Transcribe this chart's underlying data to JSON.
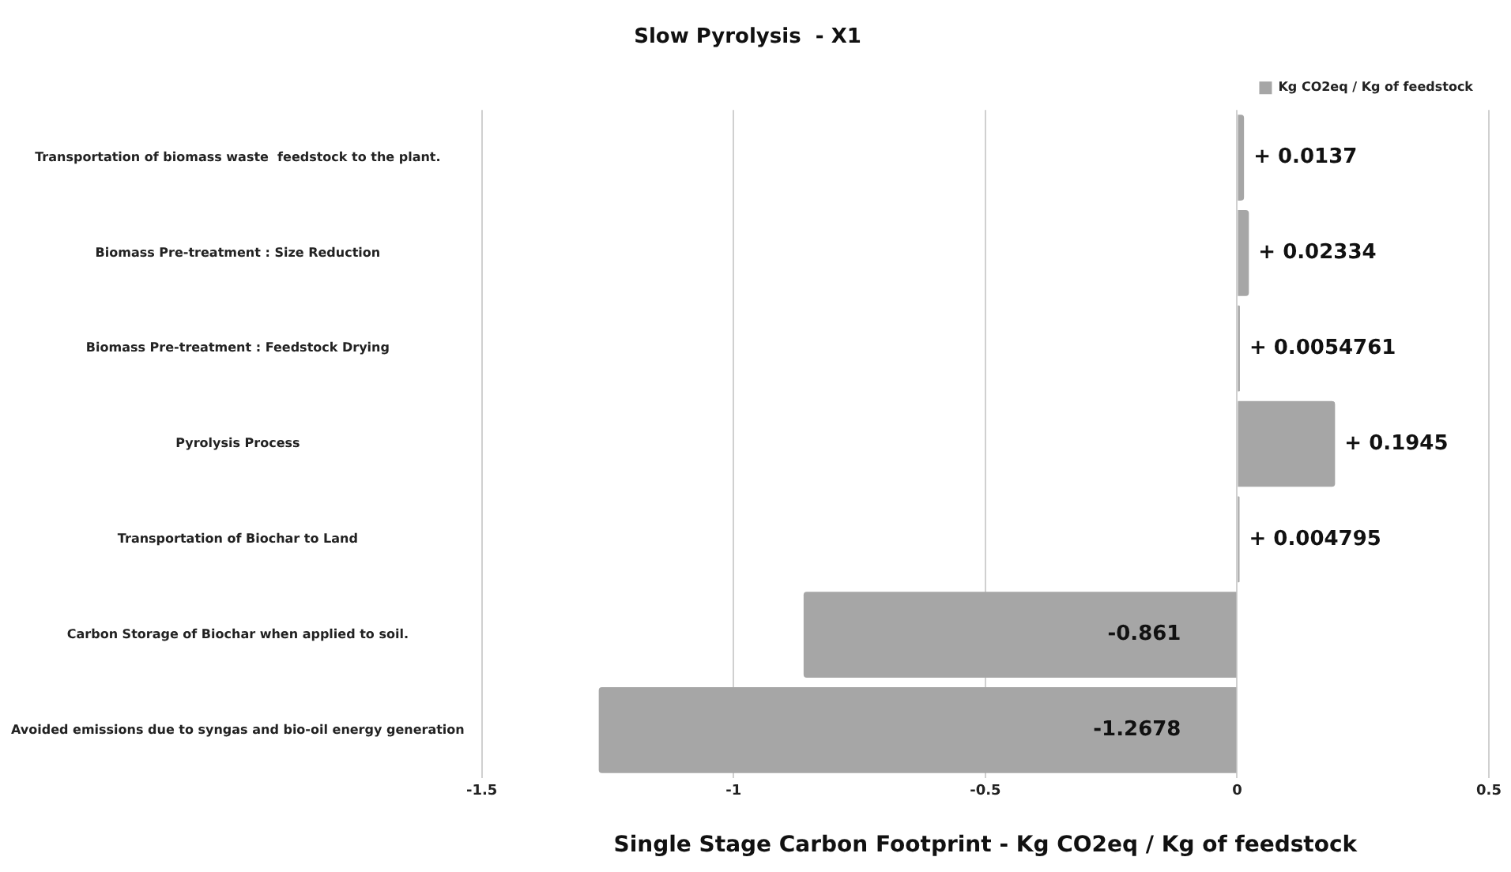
{
  "chart_data": {
    "type": "bar",
    "orientation": "horizontal",
    "title": "Slow Pyrolysis  - X1",
    "xlabel": "Single Stage Carbon Footprint - Kg CO2eq / Kg of feedstock",
    "categories": [
      "Transportation of biomass waste  feedstock to the plant.",
      "Biomass Pre-treatment : Size Reduction",
      "Biomass Pre-treatment : Feedstock Drying",
      "Pyrolysis Process",
      "Transportation of Biochar to Land",
      "Carbon Storage of Biochar when applied to soil.",
      "Avoided emissions due to syngas and bio-oil energy generation"
    ],
    "series": [
      {
        "name": "Kg CO2eq / Kg of feedstock",
        "color": "#a6a6a6",
        "values": [
          0.0137,
          0.02334,
          0.0054761,
          0.1945,
          0.004795,
          -0.861,
          -1.2678
        ],
        "value_labels": [
          "+ 0.0137",
          "+ 0.02334",
          "+ 0.0054761",
          "+ 0.1945",
          "+ 0.004795",
          "-0.861",
          "-1.2678"
        ]
      }
    ],
    "xlim": [
      -1.5,
      0.5
    ],
    "xticks": [
      -1.5,
      -1,
      -0.5,
      0,
      0.5
    ],
    "grid": "x",
    "legend": "top right"
  }
}
